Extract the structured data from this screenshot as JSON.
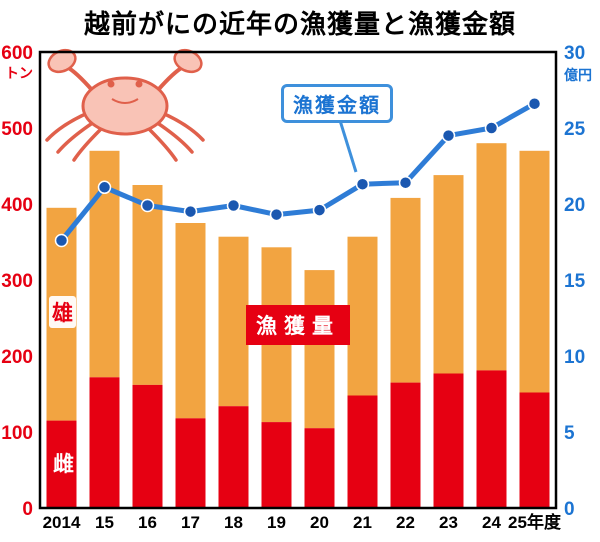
{
  "title": "越前がにの近年の漁獲量と漁獲金額",
  "labels": {
    "line_label": "漁獲金額",
    "bar_label": "漁獲量",
    "male": "雄",
    "female": "雌"
  },
  "chart_data": {
    "type": "bar",
    "subtype": "stacked-bar-with-line",
    "title": "越前がにの近年の漁獲量と漁獲金額",
    "categories": [
      "2014",
      "15",
      "16",
      "17",
      "18",
      "19",
      "20",
      "21",
      "22",
      "23",
      "24",
      "25年度"
    ],
    "series": [
      {
        "name": "雌",
        "type": "bar",
        "stack": "catch",
        "color": "#E60012",
        "values": [
          115,
          172,
          162,
          118,
          134,
          113,
          105,
          148,
          165,
          177,
          181,
          152
        ]
      },
      {
        "name": "雄",
        "type": "bar",
        "stack": "catch",
        "color": "#F2A441",
        "values": [
          280,
          298,
          263,
          257,
          223,
          230,
          208,
          209,
          243,
          261,
          299,
          318
        ]
      },
      {
        "name": "漁獲金額",
        "type": "line",
        "axis": "right",
        "color": "#2E7CD6",
        "dot_color": "#1A57B0",
        "values": [
          17.6,
          21.1,
          19.9,
          19.5,
          19.9,
          19.3,
          19.6,
          21.3,
          21.4,
          24.5,
          25.0,
          26.6
        ]
      }
    ],
    "left_axis": {
      "label": "トン",
      "min": 0,
      "max": 600,
      "ticks": [
        600,
        500,
        400,
        300,
        200,
        100,
        0
      ],
      "color": "#E60012"
    },
    "right_axis": {
      "label": "億円",
      "min": 0,
      "max": 30,
      "ticks": [
        30,
        25,
        20,
        15,
        10,
        5,
        0
      ],
      "color": "#1C74D2"
    },
    "grid": false,
    "legend_position": "inline-callouts"
  },
  "colors": {
    "bar_female": "#E60012",
    "bar_male": "#F2A441",
    "line": "#2E7CD6",
    "line_dot": "#1A57B0",
    "left_axis_text": "#E60012",
    "right_axis_text": "#1C74D2",
    "frame": "#000000",
    "crab_fill": "#F9C3B6",
    "crab_stroke": "#E0604B"
  }
}
